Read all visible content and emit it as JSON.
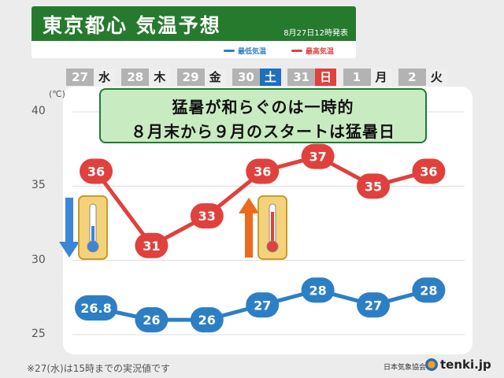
{
  "header": {
    "title": "東京都心 気温予想",
    "issued": "8月27日12時発表"
  },
  "legend": {
    "min_label": "最低気温",
    "max_label": "最高気温",
    "min_color": "#2d7fc5",
    "max_color": "#e0413d"
  },
  "days": [
    {
      "num": "27",
      "wd": "水",
      "type": "weekday"
    },
    {
      "num": "28",
      "wd": "木",
      "type": "weekday"
    },
    {
      "num": "29",
      "wd": "金",
      "type": "weekday"
    },
    {
      "num": "30",
      "wd": "土",
      "type": "sat"
    },
    {
      "num": "31",
      "wd": "日",
      "type": "sun"
    },
    {
      "num": "1",
      "wd": "月",
      "type": "weekday"
    },
    {
      "num": "2",
      "wd": "火",
      "type": "weekday"
    }
  ],
  "headline": {
    "line1": "猛暑が和らぐのは一時的",
    "line2": "８月末から９月のスタートは猛暑日"
  },
  "chart_data": {
    "type": "line",
    "categories": [
      "27",
      "28",
      "29",
      "30",
      "31",
      "1",
      "2"
    ],
    "series": [
      {
        "name": "最高気温",
        "values": [
          36,
          31,
          33,
          36,
          37,
          35,
          36
        ],
        "labels": [
          "36",
          "31",
          "33",
          "36",
          "37",
          "35",
          "36"
        ],
        "color": "#e0413d"
      },
      {
        "name": "最低気温",
        "values": [
          26.8,
          26,
          26,
          27,
          28,
          27,
          28
        ],
        "labels": [
          "26.8",
          "26",
          "26",
          "27",
          "28",
          "27",
          "28"
        ],
        "color": "#2d7fc5"
      }
    ],
    "ylim": [
      25,
      40
    ],
    "yticks": [
      25,
      30,
      35,
      40
    ],
    "ytick_labels": [
      "25",
      "30",
      "35",
      "40"
    ],
    "yunit": "(℃)",
    "grid": true,
    "legend_position": "top"
  },
  "annotations": {
    "down_arrow_color": "#3b86d6",
    "up_arrow_color": "#ec6a1e"
  },
  "footer": {
    "note": "※27(水)は15時までの実況値です",
    "credit": "日本気象協会",
    "brand": "tenki.jp"
  }
}
